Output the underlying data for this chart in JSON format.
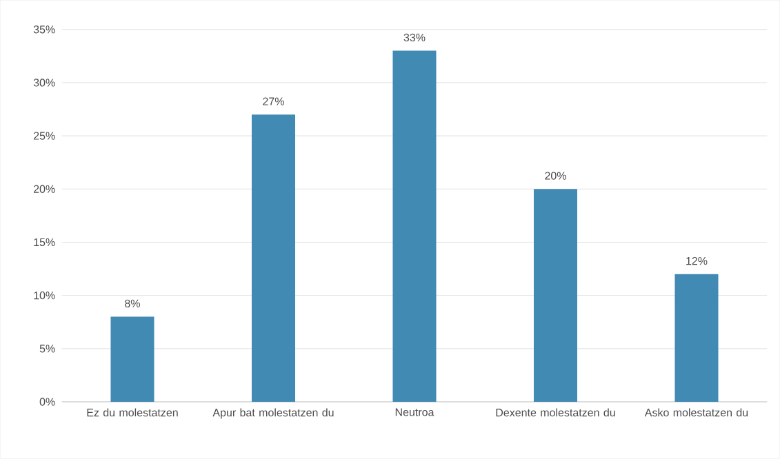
{
  "chart_data": {
    "type": "bar",
    "categories": [
      "Ez du molestatzen",
      "Apur bat molestatzen du",
      "Neutroa",
      "Dexente molestatzen du",
      "Asko molestatzen du"
    ],
    "values": [
      8,
      27,
      33,
      20,
      12
    ],
    "value_labels": [
      "8%",
      "27%",
      "33%",
      "20%",
      "12%"
    ],
    "color": "#418ab3",
    "ylim": [
      0,
      35
    ],
    "yticks": [
      {
        "value": 0,
        "label": "0%"
      },
      {
        "value": 5,
        "label": "5%"
      },
      {
        "value": 10,
        "label": "10%"
      },
      {
        "value": 15,
        "label": "15%"
      },
      {
        "value": 20,
        "label": "20%"
      },
      {
        "value": 25,
        "label": "25%"
      },
      {
        "value": 30,
        "label": "30%"
      },
      {
        "value": 35,
        "label": "35%"
      }
    ],
    "grid": "y"
  }
}
